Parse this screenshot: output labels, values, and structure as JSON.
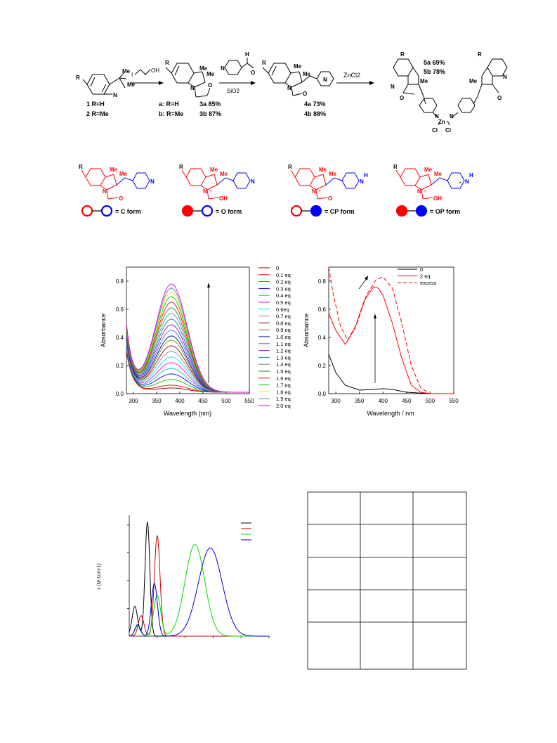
{
  "scheme": {
    "start": {
      "substituents": [
        "Me",
        "Me"
      ],
      "r": "R",
      "n": "N",
      "compound1": "1 R=H",
      "compound2": "2 R=Me"
    },
    "step1": {
      "reagent": "OH",
      "reagent_i": "I"
    },
    "intermediate3": {
      "r": "R",
      "me1": "Me",
      "me2": "Me",
      "n": "N",
      "o": "O",
      "label_a": "a: R=H",
      "label_b": "b: R=Me",
      "yield_a": "3a 85%",
      "yield_b": "3b 87%"
    },
    "step2": {
      "aldehyde_h": "H",
      "aldehyde_o": "O",
      "pyridine_n": "N",
      "conditions": "SiO2"
    },
    "intermediate4": {
      "r": "R",
      "me1": "Me",
      "me2": "Me",
      "n": "N",
      "o": "O",
      "pyr_n": "N",
      "yield_a": "4a 73%",
      "yield_b": "4b 88%"
    },
    "step3": {
      "reagent": "ZnCl2"
    },
    "product5": {
      "r1": "R",
      "r2": "R",
      "me": "Me",
      "n": "N",
      "o": "O",
      "zn": "Zn",
      "cl": "Cl",
      "yield_a": "5a 69%",
      "yield_b": "5b 78%"
    }
  },
  "forms": [
    {
      "r": "R",
      "me1": "Me",
      "me2": "Me",
      "n": "N",
      "o": "O",
      "pyr_n": "N",
      "label": "= C form",
      "left_color": "#ff0000",
      "left_filled": false,
      "right_color": "#0000ff",
      "right_filled": false
    },
    {
      "r": "R",
      "me1": "Me",
      "me2": "Me",
      "n": "N",
      "charge": "+",
      "oh": "OH",
      "pyr_n": "N",
      "label": "= O form",
      "left_color": "#ff0000",
      "left_filled": true,
      "right_color": "#0000ff",
      "right_filled": false
    },
    {
      "r": "R",
      "me1": "Me",
      "me2": "Me",
      "n": "N",
      "o": "O",
      "pyr_n": "N",
      "h": "H",
      "charge": "+",
      "label": "= CP form",
      "left_color": "#ff0000",
      "left_filled": false,
      "right_color": "#0000ff",
      "right_filled": true
    },
    {
      "r": "R",
      "me1": "Me",
      "me2": "Me",
      "n": "N",
      "charge": "+",
      "oh": "OH",
      "pyr_n": "N",
      "h": "H",
      "charge2": "+",
      "label": "= OP form",
      "left_color": "#ff0000",
      "left_filled": true,
      "right_color": "#0000ff",
      "right_filled": true
    }
  ],
  "chart_data": [
    {
      "type": "line",
      "title": "",
      "xlabel": "Wavelength (nm)",
      "ylabel": "Absorbance",
      "xlim": [
        285,
        550
      ],
      "ylim": [
        0.0,
        0.9
      ],
      "xticks": [
        "300",
        "350",
        "400",
        "450",
        "500",
        "550"
      ],
      "yticks": [
        "0.0",
        "0.2",
        "0.4",
        "0.6",
        "0.8"
      ],
      "annotation": "arrow up at ~395 nm",
      "legend_placement": "right, outside",
      "series": [
        {
          "name": "0",
          "color": "#8b0000",
          "peak": 0.03
        },
        {
          "name": "0.1 eq",
          "color": "#ff0000",
          "peak": 0.05
        },
        {
          "name": "0.2 eq",
          "color": "#00c000",
          "peak": 0.09
        },
        {
          "name": "0.3 eq",
          "color": "#0000ff",
          "peak": 0.13
        },
        {
          "name": "0.4 eq",
          "color": "#00bfbf",
          "peak": 0.17
        },
        {
          "name": "0.5 eq",
          "color": "#ff00ff",
          "peak": 0.21
        },
        {
          "name": "0.6eq",
          "color": "#00e5ee",
          "peak": 0.25
        },
        {
          "name": "0.7 eq",
          "color": "#8b8b8b",
          "peak": 0.29
        },
        {
          "name": "0.8 eq",
          "color": "#8b0000",
          "peak": 0.33
        },
        {
          "name": "0.9 eq",
          "color": "#6b8e23",
          "peak": 0.37
        },
        {
          "name": "1.0 eq",
          "color": "#000080",
          "peak": 0.4
        },
        {
          "name": "1.1 eq",
          "color": "#4169e1",
          "peak": 0.44
        },
        {
          "name": "1.2 eq",
          "color": "#9400d3",
          "peak": 0.48
        },
        {
          "name": "1.3 eq",
          "color": "#008b8b",
          "peak": 0.52
        },
        {
          "name": "1.4 eq",
          "color": "#708090",
          "peak": 0.56
        },
        {
          "name": "1.5 eq",
          "color": "#228b22",
          "peak": 0.6
        },
        {
          "name": "1.6 eq",
          "color": "#ff0000",
          "peak": 0.64
        },
        {
          "name": "1.7 eq",
          "color": "#00cc00",
          "peak": 0.68
        },
        {
          "name": "1.8 eq",
          "color": "#ffd700",
          "peak": 0.71
        },
        {
          "name": "1.9 eq",
          "color": "#4682b4",
          "peak": 0.74
        },
        {
          "name": "2.0 eq",
          "color": "#e000e0",
          "peak": 0.77
        }
      ]
    },
    {
      "type": "line",
      "title": "",
      "xlabel": "Wavelength / nm",
      "ylabel": "Absorbance",
      "xlim": [
        285,
        550
      ],
      "ylim": [
        0.0,
        0.9
      ],
      "xticks": [
        "300",
        "350",
        "400",
        "450",
        "500",
        "550"
      ],
      "yticks": [
        "0.0",
        "0.2",
        "0.4",
        "0.6",
        "0.8"
      ],
      "legend_placement": "top-right",
      "series": [
        {
          "name": "0",
          "color": "#000000",
          "style": "solid",
          "x": [
            285,
            300,
            320,
            350,
            380,
            400,
            420,
            450,
            500,
            550
          ],
          "y": [
            0.28,
            0.15,
            0.06,
            0.025,
            0.03,
            0.035,
            0.03,
            0.01,
            0.0,
            0.0
          ]
        },
        {
          "name": "2 eq",
          "color": "#ff0000",
          "style": "solid",
          "x": [
            285,
            300,
            320,
            340,
            360,
            380,
            390,
            400,
            420,
            440,
            460,
            480,
            500,
            550
          ],
          "y": [
            0.57,
            0.45,
            0.35,
            0.46,
            0.66,
            0.76,
            0.75,
            0.7,
            0.5,
            0.25,
            0.06,
            0.01,
            0.0,
            0.0
          ]
        },
        {
          "name": "excess",
          "color": "#ff0000",
          "style": "dashed",
          "x": [
            285,
            295,
            310,
            325,
            345,
            365,
            385,
            400,
            420,
            440,
            460,
            480,
            500,
            550
          ],
          "y": [
            0.9,
            0.7,
            0.48,
            0.38,
            0.5,
            0.7,
            0.81,
            0.83,
            0.75,
            0.5,
            0.2,
            0.04,
            0.0,
            0.0
          ]
        }
      ]
    },
    {
      "type": "line",
      "title": "",
      "ylabel": "ε (M-1cm-1)",
      "yticks": [
        "",
        "",
        "",
        ""
      ],
      "xticks": [],
      "legend_placement": "top-right",
      "legend_names": [
        "",
        "",
        "",
        ""
      ],
      "series": [
        {
          "color": "#000000",
          "peak_pos": 0.13,
          "peak_val": 1.0
        },
        {
          "color": "#cc0000",
          "peak_pos": 0.2,
          "peak_val": 0.88
        },
        {
          "color": "#00dd00",
          "peak_pos": 0.47,
          "peak_val": 0.8
        },
        {
          "color": "#0000cc",
          "peak_pos": 0.58,
          "peak_val": 0.77
        }
      ]
    }
  ],
  "table": {
    "rows": [
      [
        "",
        "",
        ""
      ],
      [
        "",
        "",
        ""
      ],
      [
        "",
        "",
        ""
      ],
      [
        "",
        "",
        ""
      ],
      [
        "",
        "",
        ""
      ]
    ]
  }
}
